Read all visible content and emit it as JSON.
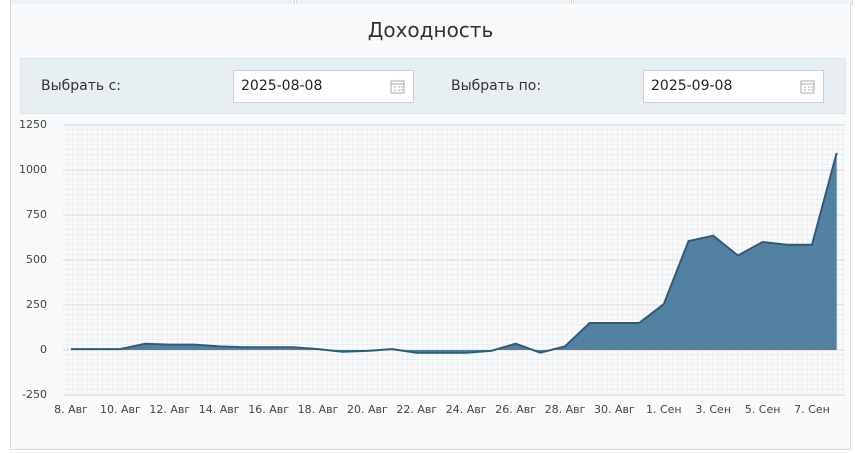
{
  "header": {
    "title": "Доходность"
  },
  "filter": {
    "from_label": "Выбрать с:",
    "from_value": "2025-08-08",
    "to_label": "Выбрать по:",
    "to_value": "2025-09-08"
  },
  "chart_data": {
    "type": "area",
    "categories": [
      "8. Авг",
      null,
      "10. Авг",
      null,
      "12. Авг",
      null,
      "14. Авг",
      null,
      "16. Авг",
      null,
      "18. Авг",
      null,
      "20. Авг",
      null,
      "22. Авг",
      null,
      "24. Авг",
      null,
      "26. Авг",
      null,
      "28. Авг",
      null,
      "30. Авг",
      null,
      "1. Сен",
      null,
      "3. Сен",
      null,
      "5. Сен",
      null,
      "7. Сен",
      null
    ],
    "values": [
      5,
      5,
      5,
      35,
      30,
      30,
      20,
      15,
      15,
      15,
      5,
      -10,
      -5,
      5,
      -15,
      -15,
      -15,
      -5,
      35,
      -15,
      20,
      150,
      150,
      150,
      255,
      605,
      635,
      525,
      600,
      585,
      585,
      1095
    ],
    "color": "#4a7a9c",
    "line_color": "#2f5b7a",
    "ylim": [
      -250,
      1250
    ],
    "yticks": [
      -250,
      0,
      250,
      500,
      750,
      1000,
      1250
    ],
    "grid": true
  }
}
